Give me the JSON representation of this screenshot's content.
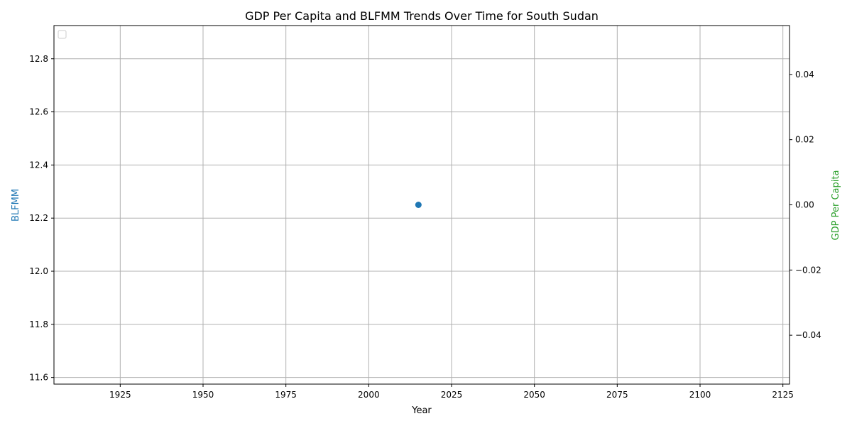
{
  "chart_data": {
    "type": "scatter",
    "title": "GDP Per Capita and BLFMM Trends Over Time for South Sudan",
    "xlabel": "Year",
    "ylabel_left": "BLFMM",
    "ylabel_right": "GDP Per Capita",
    "xlim": [
      1905,
      2127
    ],
    "ylim_left": [
      11.575,
      12.925
    ],
    "ylim_right": [
      -0.055,
      0.055
    ],
    "x_ticks": [
      1925,
      1950,
      1975,
      2000,
      2025,
      2050,
      2075,
      2100,
      2125
    ],
    "y_left_ticks": [
      11.6,
      11.8,
      12.0,
      12.2,
      12.4,
      12.6,
      12.8
    ],
    "y_right_ticks": [
      -0.04,
      -0.02,
      0.0,
      0.02,
      0.04
    ],
    "x_tick_labels": [
      "1925",
      "1950",
      "1975",
      "2000",
      "2025",
      "2050",
      "2075",
      "2100",
      "2125"
    ],
    "y_left_tick_labels": [
      "11.6",
      "11.8",
      "12.0",
      "12.2",
      "12.4",
      "12.6",
      "12.8"
    ],
    "y_right_tick_labels": [
      "−0.04",
      "−0.02",
      "0.00",
      "0.02",
      "0.04"
    ],
    "grid": true,
    "legend_placement": "top-left",
    "legend_entries": [],
    "series": [
      {
        "axis": "left",
        "color": "#1f77b4",
        "marker": "circle",
        "points": [
          {
            "x": 2015,
            "y": 12.25
          }
        ]
      }
    ],
    "colors": {
      "left_axis_label": "#1f77b4",
      "right_axis_label": "#2ca02c",
      "grid": "#b0b0b0"
    }
  }
}
